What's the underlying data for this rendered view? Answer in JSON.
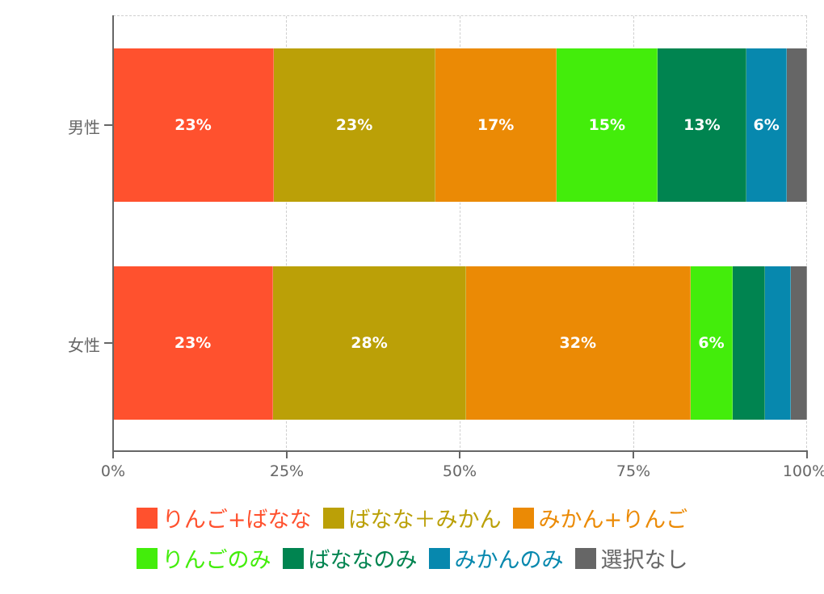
{
  "chart_data": {
    "type": "bar",
    "orientation": "horizontal",
    "stacked": true,
    "normalized": true,
    "categories": [
      "男性",
      "女性"
    ],
    "series": [
      {
        "name": "りんご+ばなな",
        "color": "#FF512E",
        "values": [
          23.2,
          23.1
        ],
        "labels": [
          "23%",
          "23%"
        ]
      },
      {
        "name": "ばなな＋みかん",
        "color": "#BBA007",
        "values": [
          23.3,
          27.8
        ],
        "labels": [
          "23%",
          "28%"
        ]
      },
      {
        "name": "みかん+りんご",
        "color": "#EB8A05",
        "values": [
          17.5,
          32.4
        ],
        "labels": [
          "17%",
          "32%"
        ]
      },
      {
        "name": "りんごのみ",
        "color": "#43ED0B",
        "values": [
          14.6,
          6.1
        ],
        "labels": [
          "15%",
          "6%"
        ]
      },
      {
        "name": "ばななのみ",
        "color": "#008450",
        "values": [
          12.8,
          4.7
        ],
        "labels": [
          "13%",
          ""
        ]
      },
      {
        "name": "みかんのみ",
        "color": "#0788AE",
        "values": [
          5.8,
          3.7
        ],
        "labels": [
          "6%",
          ""
        ]
      },
      {
        "name": "選択なし",
        "color": "#666666",
        "values": [
          2.9,
          2.3
        ],
        "labels": [
          "",
          ""
        ]
      }
    ],
    "title": "",
    "xlabel": "",
    "ylabel": "",
    "xlim": [
      0,
      100
    ],
    "xticks": [
      "0%",
      "25%",
      "50%",
      "75%",
      "100%"
    ],
    "grid": true,
    "legend_position": "bottom"
  }
}
